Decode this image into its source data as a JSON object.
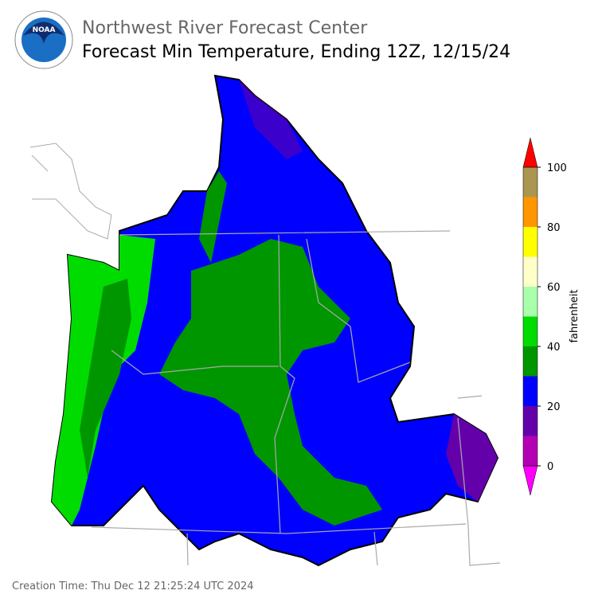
{
  "header": {
    "agency": "Northwest River Forecast Center",
    "title": "Forecast Min Temperature, Ending 12Z, 12/15/24"
  },
  "colorbar": {
    "label": "fahrenheit",
    "lim": [
      0,
      100
    ],
    "ticks": [
      0,
      20,
      40,
      60,
      80,
      100
    ],
    "under_color": "#ff00ff",
    "over_color": "#ff0000",
    "bins": [
      {
        "from": 0,
        "to": 10,
        "color": "#b400b4"
      },
      {
        "from": 10,
        "to": 20,
        "color": "#6400aa"
      },
      {
        "from": 20,
        "to": 30,
        "color": "#0000ff"
      },
      {
        "from": 30,
        "to": 40,
        "color": "#009600"
      },
      {
        "from": 40,
        "to": 50,
        "color": "#00dc00"
      },
      {
        "from": 50,
        "to": 60,
        "color": "#aaffaa"
      },
      {
        "from": 60,
        "to": 70,
        "color": "#ffffc8"
      },
      {
        "from": 70,
        "to": 80,
        "color": "#ffff00"
      },
      {
        "from": 80,
        "to": 90,
        "color": "#ff9600"
      },
      {
        "from": 90,
        "to": 100,
        "color": "#aa9650"
      }
    ]
  },
  "footer": {
    "creation_time": "Creation Time: Thu Dec 12 21:25:24 UTC 2024"
  }
}
